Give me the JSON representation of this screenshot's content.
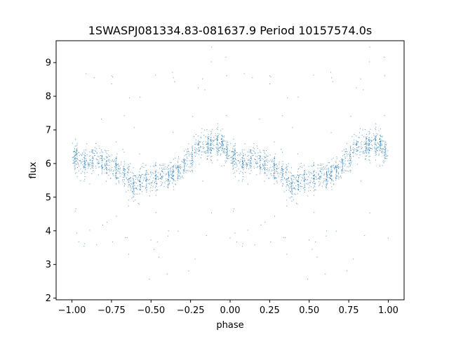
{
  "chart_data": {
    "type": "scatter",
    "title": "1SWASPJ081334.83-081637.9 Period 10157574.0s",
    "xlabel": "phase",
    "ylabel": "flux",
    "xlim": [
      -1.1,
      1.1
    ],
    "ylim": [
      1.95,
      9.65
    ],
    "x_ticks": [
      -1.0,
      -0.75,
      -0.5,
      -0.25,
      0.0,
      0.25,
      0.5,
      0.75,
      1.0
    ],
    "x_tick_labels": [
      "−1.00",
      "−0.75",
      "−0.50",
      "−0.25",
      "0.00",
      "0.25",
      "0.50",
      "0.75",
      "1.00"
    ],
    "y_ticks": [
      2,
      3,
      4,
      5,
      6,
      7,
      8,
      9
    ],
    "y_tick_labels": [
      "2",
      "3",
      "4",
      "5",
      "6",
      "7",
      "8",
      "9"
    ],
    "grid": false,
    "marker_color": "#1f77b4",
    "profile": [
      {
        "phase": 0.0,
        "flux": 6.3
      },
      {
        "phase": 0.05,
        "flux": 6.1
      },
      {
        "phase": 0.1,
        "flux": 6.0
      },
      {
        "phase": 0.15,
        "flux": 6.2
      },
      {
        "phase": 0.2,
        "flux": 6.0
      },
      {
        "phase": 0.25,
        "flux": 5.9
      },
      {
        "phase": 0.3,
        "flux": 5.8
      },
      {
        "phase": 0.35,
        "flux": 5.6
      },
      {
        "phase": 0.4,
        "flux": 5.3
      },
      {
        "phase": 0.45,
        "flux": 5.5
      },
      {
        "phase": 0.5,
        "flux": 5.5
      },
      {
        "phase": 0.55,
        "flux": 5.7
      },
      {
        "phase": 0.6,
        "flux": 5.6
      },
      {
        "phase": 0.65,
        "flux": 5.7
      },
      {
        "phase": 0.7,
        "flux": 5.9
      },
      {
        "phase": 0.75,
        "flux": 6.2
      },
      {
        "phase": 0.8,
        "flux": 6.5
      },
      {
        "phase": 0.85,
        "flux": 6.5
      },
      {
        "phase": 0.9,
        "flux": 6.6
      },
      {
        "phase": 0.95,
        "flux": 6.6
      },
      {
        "phase": 1.0,
        "flux": 6.3
      }
    ],
    "observation_phases": [
      0.02,
      0.03,
      0.08,
      0.13,
      0.19,
      0.22,
      0.28,
      0.33,
      0.36,
      0.39,
      0.43,
      0.47,
      0.53,
      0.57,
      0.61,
      0.64,
      0.67,
      0.71,
      0.76,
      0.8,
      0.86,
      0.88,
      0.92,
      0.95,
      0.98
    ]
  }
}
